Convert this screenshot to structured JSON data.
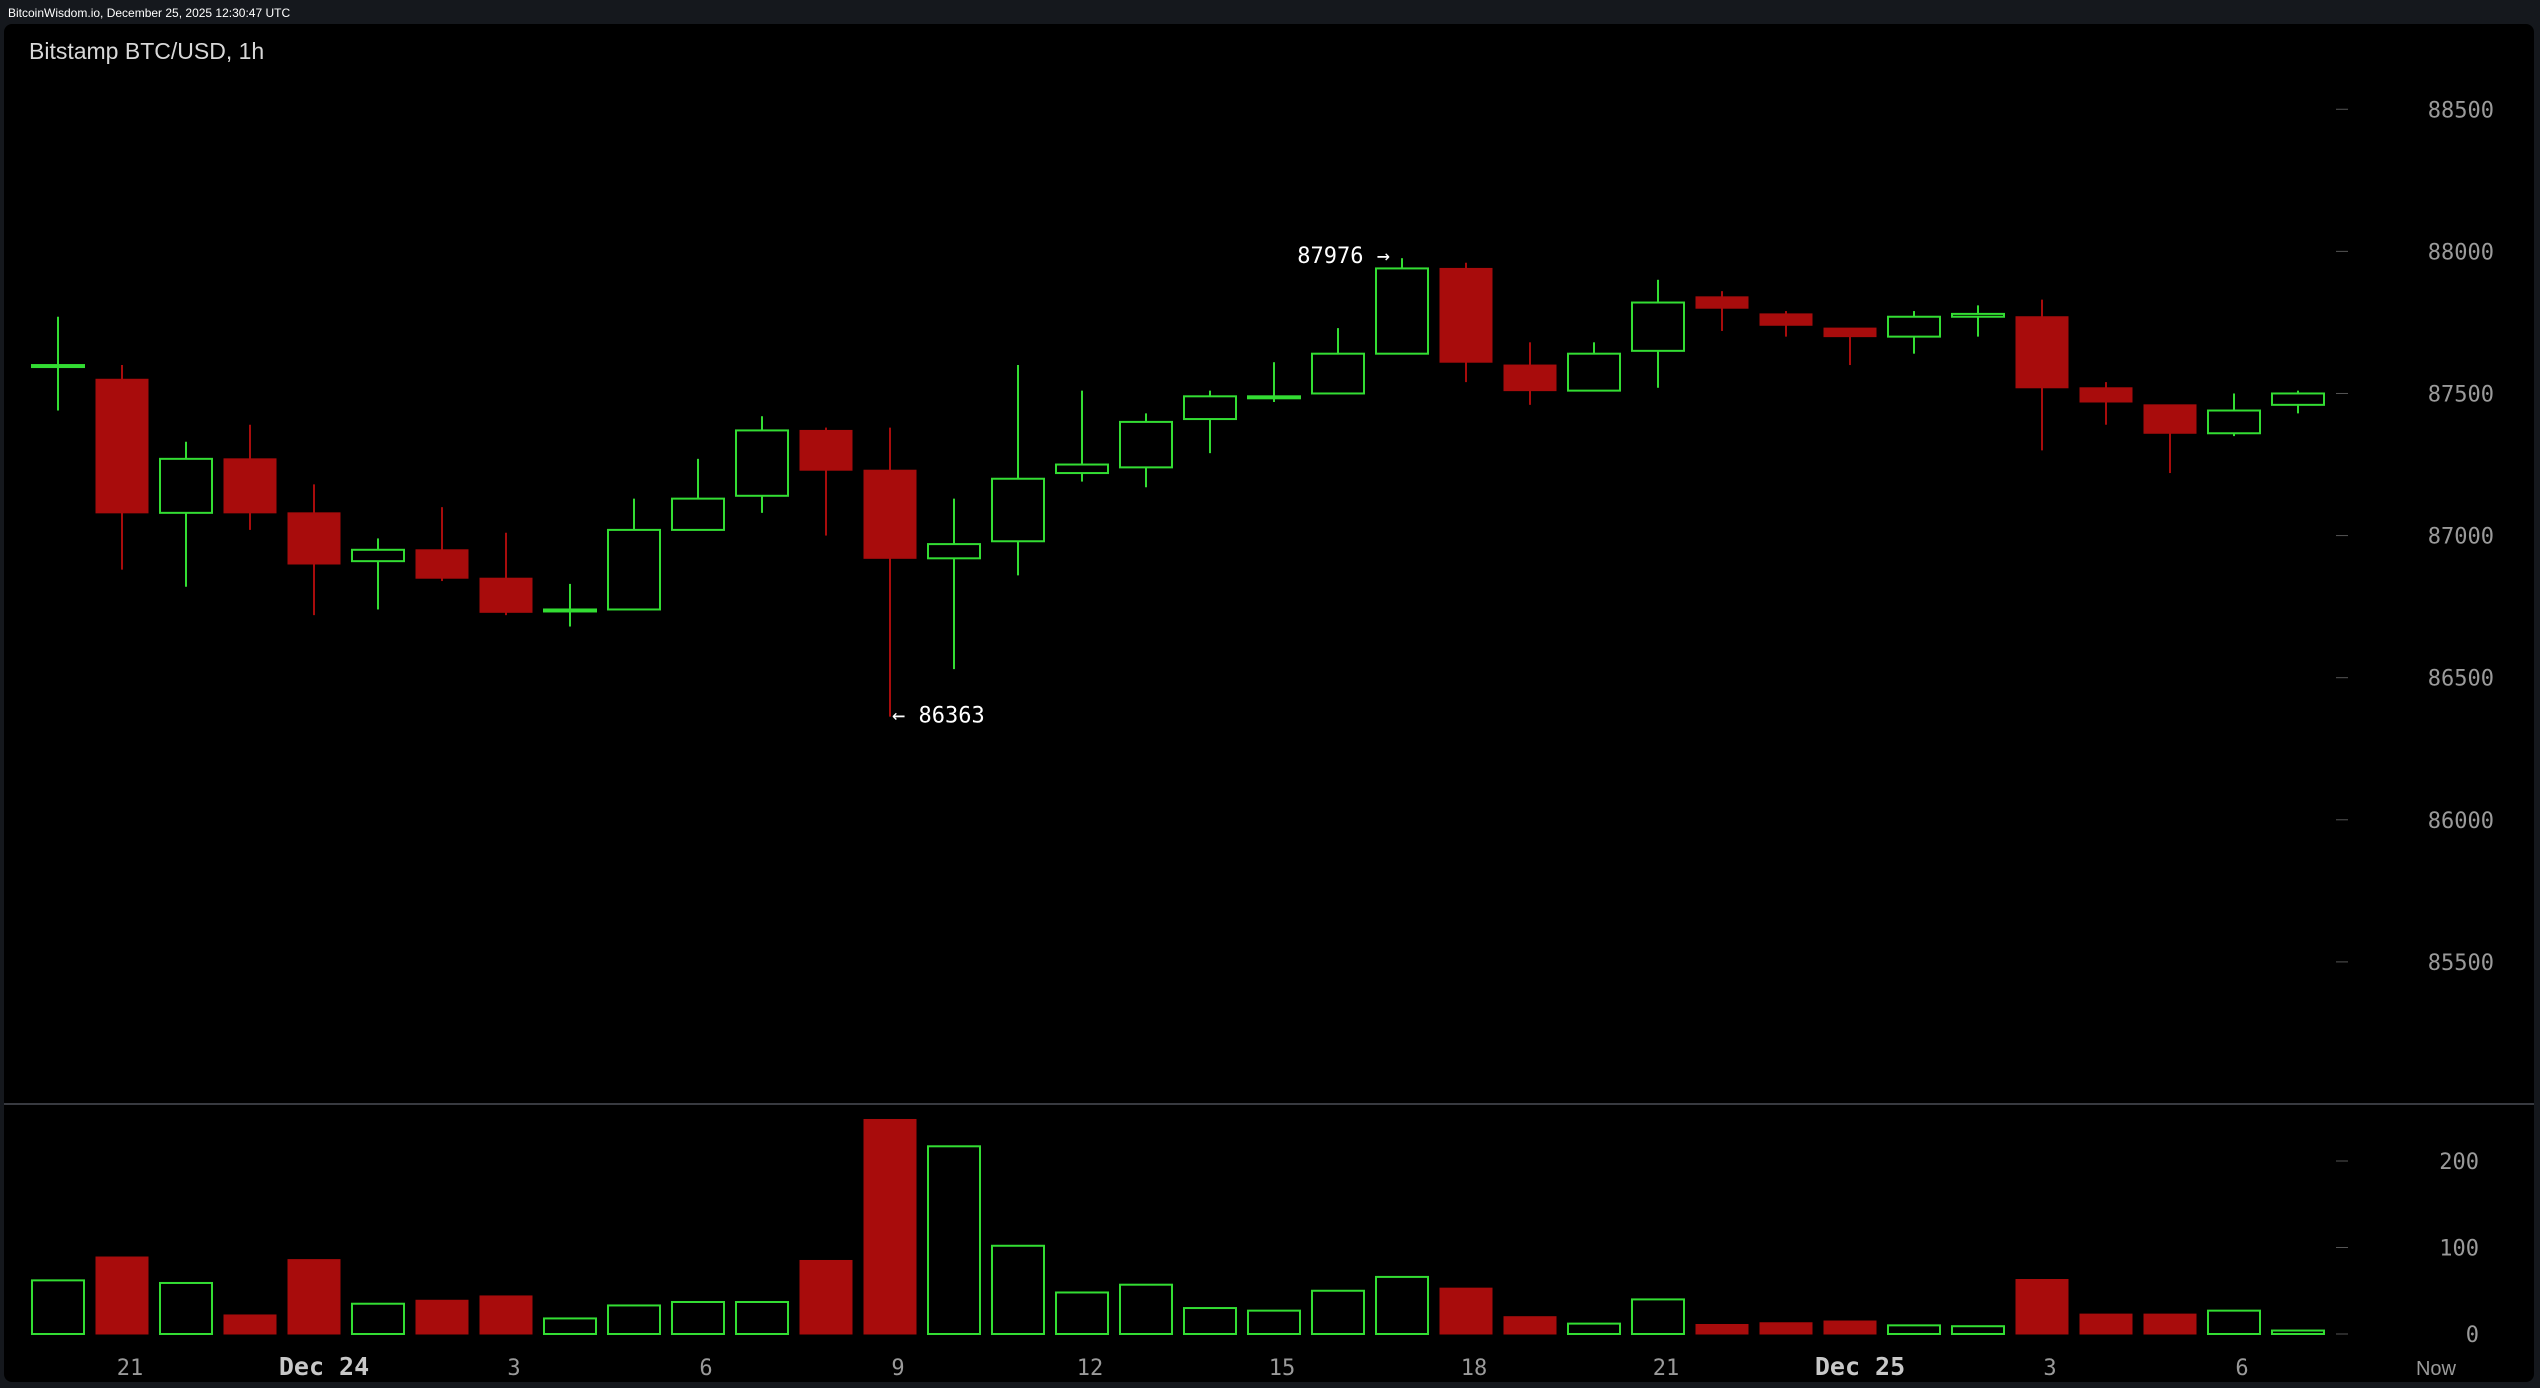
{
  "header": {
    "site_info": "BitcoinWisdom.io, December 25, 2025 12:30:47 UTC",
    "chart_title": "Bitstamp BTC/USD, 1h"
  },
  "colors": {
    "up": "#33dd33",
    "down": "#a80c0c",
    "background": "#000000",
    "frame": "#15181d",
    "axis_text": "#9a9a9a"
  },
  "chart_data": [
    {
      "type": "candlestick",
      "title": "Bitstamp BTC/USD, 1h",
      "ylim": [
        85000,
        88800
      ],
      "y_ticks": [
        85500,
        86000,
        86500,
        87000,
        87500,
        88000,
        88500
      ],
      "x_ticks": [
        {
          "label": "21",
          "index": 1,
          "bold": false
        },
        {
          "label": "Dec 24",
          "index": 4,
          "bold": true
        },
        {
          "label": "3",
          "index": 7,
          "bold": false
        },
        {
          "label": "6",
          "index": 10,
          "bold": false
        },
        {
          "label": "9",
          "index": 13,
          "bold": false
        },
        {
          "label": "12",
          "index": 16,
          "bold": false
        },
        {
          "label": "15",
          "index": 19,
          "bold": false
        },
        {
          "label": "18",
          "index": 22,
          "bold": false
        },
        {
          "label": "21",
          "index": 25,
          "bold": false
        },
        {
          "label": "Dec 25",
          "index": 28,
          "bold": true
        },
        {
          "label": "3",
          "index": 31,
          "bold": false
        },
        {
          "label": "6",
          "index": 34,
          "bold": false
        },
        {
          "label": "Now",
          "index": 37,
          "bold": false
        }
      ],
      "annotations": [
        {
          "text": "87976 →",
          "index": 21,
          "value": 87976,
          "side": "left"
        },
        {
          "text": "← 86363",
          "index": 13,
          "value": 86363,
          "side": "right"
        }
      ],
      "candles": [
        {
          "o": 87600,
          "h": 87770,
          "l": 87440,
          "c": 87600
        },
        {
          "o": 87550,
          "h": 87600,
          "l": 86880,
          "c": 87080
        },
        {
          "o": 87080,
          "h": 87330,
          "l": 86820,
          "c": 87270
        },
        {
          "o": 87270,
          "h": 87390,
          "l": 87020,
          "c": 87080
        },
        {
          "o": 87080,
          "h": 87180,
          "l": 86720,
          "c": 86900
        },
        {
          "o": 86910,
          "h": 86990,
          "l": 86740,
          "c": 86950
        },
        {
          "o": 86950,
          "h": 87100,
          "l": 86840,
          "c": 86850
        },
        {
          "o": 86850,
          "h": 87010,
          "l": 86720,
          "c": 86730
        },
        {
          "o": 86740,
          "h": 86830,
          "l": 86680,
          "c": 86740
        },
        {
          "o": 86740,
          "h": 87130,
          "l": 86740,
          "c": 87020
        },
        {
          "o": 87020,
          "h": 87270,
          "l": 87020,
          "c": 87130
        },
        {
          "o": 87140,
          "h": 87420,
          "l": 87080,
          "c": 87370
        },
        {
          "o": 87370,
          "h": 87380,
          "l": 87000,
          "c": 87230
        },
        {
          "o": 87230,
          "h": 87380,
          "l": 86363,
          "c": 86920
        },
        {
          "o": 86920,
          "h": 87130,
          "l": 86530,
          "c": 86970
        },
        {
          "o": 86980,
          "h": 87600,
          "l": 86860,
          "c": 87200
        },
        {
          "o": 87220,
          "h": 87510,
          "l": 87190,
          "c": 87250
        },
        {
          "o": 87240,
          "h": 87430,
          "l": 87170,
          "c": 87400
        },
        {
          "o": 87410,
          "h": 87510,
          "l": 87290,
          "c": 87490
        },
        {
          "o": 87490,
          "h": 87610,
          "l": 87470,
          "c": 87490
        },
        {
          "o": 87500,
          "h": 87730,
          "l": 87500,
          "c": 87640
        },
        {
          "o": 87640,
          "h": 87976,
          "l": 87640,
          "c": 87940
        },
        {
          "o": 87940,
          "h": 87960,
          "l": 87540,
          "c": 87610
        },
        {
          "o": 87600,
          "h": 87680,
          "l": 87460,
          "c": 87510
        },
        {
          "o": 87510,
          "h": 87680,
          "l": 87510,
          "c": 87640
        },
        {
          "o": 87650,
          "h": 87900,
          "l": 87520,
          "c": 87820
        },
        {
          "o": 87840,
          "h": 87860,
          "l": 87720,
          "c": 87800
        },
        {
          "o": 87780,
          "h": 87790,
          "l": 87700,
          "c": 87740
        },
        {
          "o": 87730,
          "h": 87730,
          "l": 87600,
          "c": 87700
        },
        {
          "o": 87700,
          "h": 87790,
          "l": 87640,
          "c": 87770
        },
        {
          "o": 87770,
          "h": 87810,
          "l": 87700,
          "c": 87780
        },
        {
          "o": 87770,
          "h": 87830,
          "l": 87300,
          "c": 87520
        },
        {
          "o": 87520,
          "h": 87540,
          "l": 87390,
          "c": 87470
        },
        {
          "o": 87460,
          "h": 87460,
          "l": 87220,
          "c": 87360
        },
        {
          "o": 87360,
          "h": 87500,
          "l": 87350,
          "c": 87440
        },
        {
          "o": 87460,
          "h": 87510,
          "l": 87430,
          "c": 87500
        }
      ]
    },
    {
      "type": "bar",
      "title": "",
      "ylim": [
        0,
        250
      ],
      "y_ticks": [
        0,
        100,
        200
      ],
      "values": [
        62,
        89,
        59,
        22,
        86,
        35,
        39,
        44,
        18,
        33,
        37,
        37,
        85,
        248,
        217,
        102,
        48,
        57,
        30,
        27,
        50,
        66,
        53,
        20,
        12,
        40,
        11,
        13,
        15,
        10,
        9,
        63,
        23,
        23,
        27,
        4
      ]
    }
  ]
}
